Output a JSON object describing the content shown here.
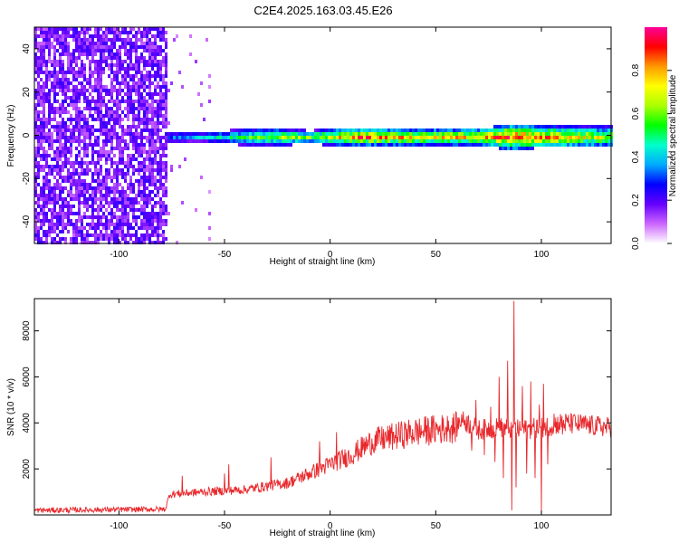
{
  "title": "C2E4.2025.163.03.45.E26",
  "chart_data": [
    {
      "type": "heatmap",
      "xlabel": "Height of straight line (km)",
      "ylabel": "Frequency (Hz)",
      "xlim": [
        -140,
        133
      ],
      "ylim": [
        -50,
        50
      ],
      "xticks": [
        -100,
        -50,
        0,
        50,
        100
      ],
      "yticks": [
        -40,
        -20,
        0,
        20,
        40
      ],
      "colorbar": {
        "label": "Normalized spectral amplitude",
        "range": [
          0.0,
          1.0
        ],
        "ticks": [
          0.0,
          0.2,
          0.4,
          0.6,
          0.8
        ],
        "colors": [
          "#ffffff",
          "#cc66ff",
          "#6600ff",
          "#0000ff",
          "#00aaff",
          "#00ffcc",
          "#00ff00",
          "#aaff00",
          "#ffff00",
          "#ff9900",
          "#ff0000",
          "#ff0099"
        ]
      },
      "noise_region_x": [
        -140,
        -77
      ],
      "band": {
        "x_start": -77,
        "x_end": 133,
        "center_freq": 0,
        "points": [
          {
            "x": -77,
            "halfwidth": 3,
            "amp": 0.35
          },
          {
            "x": -60,
            "halfwidth": 2.5,
            "amp": 0.45
          },
          {
            "x": -50,
            "halfwidth": 3,
            "amp": 0.5
          },
          {
            "x": -40,
            "halfwidth": 4,
            "amp": 0.6
          },
          {
            "x": -25,
            "halfwidth": 4,
            "amp": 0.7
          },
          {
            "x": -10,
            "halfwidth": 3,
            "amp": 0.65
          },
          {
            "x": 0,
            "halfwidth": 4,
            "amp": 0.75
          },
          {
            "x": 15,
            "halfwidth": 4,
            "amp": 0.95
          },
          {
            "x": 30,
            "halfwidth": 4,
            "amp": 0.85
          },
          {
            "x": 50,
            "halfwidth": 4,
            "amp": 0.8
          },
          {
            "x": 70,
            "halfwidth": 4,
            "amp": 0.85
          },
          {
            "x": 85,
            "halfwidth": 6,
            "amp": 0.95
          },
          {
            "x": 100,
            "halfwidth": 5,
            "amp": 0.9
          },
          {
            "x": 115,
            "halfwidth": 5,
            "amp": 0.8
          },
          {
            "x": 133,
            "halfwidth": 5,
            "amp": 0.7
          }
        ]
      }
    },
    {
      "type": "line",
      "xlabel": "Height of straight line (km)",
      "ylabel": "SNR (10 * v/v)",
      "xlim": [
        -140,
        133
      ],
      "ylim": [
        0,
        9400
      ],
      "xticks": [
        -100,
        -50,
        0,
        50,
        100
      ],
      "yticks": [
        2000,
        4000,
        6000,
        8000
      ],
      "color": "#e8282c",
      "trend": [
        {
          "x": -140,
          "y": 200
        },
        {
          "x": -78,
          "y": 250
        },
        {
          "x": -76,
          "y": 900
        },
        {
          "x": -60,
          "y": 1000
        },
        {
          "x": -40,
          "y": 1100
        },
        {
          "x": -20,
          "y": 1400
        },
        {
          "x": 0,
          "y": 2200
        },
        {
          "x": 10,
          "y": 2600
        },
        {
          "x": 20,
          "y": 3200
        },
        {
          "x": 40,
          "y": 3600
        },
        {
          "x": 60,
          "y": 3800
        },
        {
          "x": 62,
          "y": 4200
        },
        {
          "x": 70,
          "y": 3700
        },
        {
          "x": 80,
          "y": 3800
        },
        {
          "x": 90,
          "y": 3700
        },
        {
          "x": 100,
          "y": 3800
        },
        {
          "x": 110,
          "y": 4000
        },
        {
          "x": 133,
          "y": 3800
        }
      ],
      "spikes": [
        {
          "x": 56,
          "y": 4100
        },
        {
          "x": 63,
          "y": 4500
        },
        {
          "x": 67,
          "y": 2800
        },
        {
          "x": 69,
          "y": 5000
        },
        {
          "x": 73,
          "y": 2600
        },
        {
          "x": 76,
          "y": 4700
        },
        {
          "x": 78,
          "y": 2300
        },
        {
          "x": 80,
          "y": 6000
        },
        {
          "x": 82,
          "y": 1600
        },
        {
          "x": 84,
          "y": 6700
        },
        {
          "x": 86,
          "y": 200
        },
        {
          "x": 87,
          "y": 9300
        },
        {
          "x": 88,
          "y": 1200
        },
        {
          "x": 91,
          "y": 5600
        },
        {
          "x": 93,
          "y": 1800
        },
        {
          "x": 95,
          "y": 5800
        },
        {
          "x": 97,
          "y": 1600
        },
        {
          "x": 99,
          "y": 4800
        },
        {
          "x": 100,
          "y": 100
        },
        {
          "x": 101,
          "y": 5700
        },
        {
          "x": 103,
          "y": 2200
        },
        {
          "x": 106,
          "y": 4400
        },
        {
          "x": 110,
          "y": 3500
        },
        {
          "x": 115,
          "y": 4300
        },
        {
          "x": 3,
          "y": 3600
        },
        {
          "x": -5,
          "y": 3200
        },
        {
          "x": -28,
          "y": 2500
        },
        {
          "x": -48,
          "y": 2200
        },
        {
          "x": -50,
          "y": 1800
        },
        {
          "x": -70,
          "y": 1700
        }
      ]
    }
  ]
}
